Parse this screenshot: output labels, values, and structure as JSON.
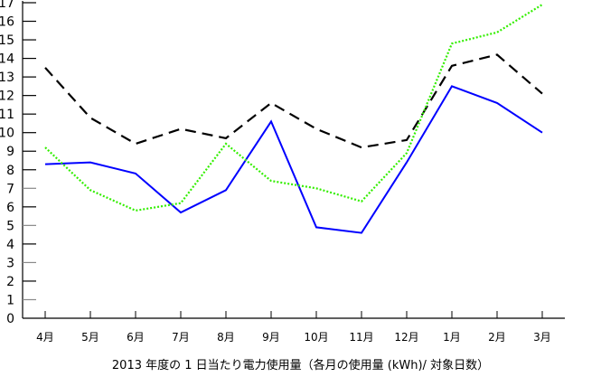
{
  "chart_data": {
    "type": "line",
    "title": "2013 年度の 1 日当たり電力使用量（各月の使用量 (kWh)/ 対象日数）",
    "xlabel": "",
    "ylabel": "",
    "categories": [
      "4月",
      "5月",
      "6月",
      "7月",
      "8月",
      "9月",
      "10月",
      "11月",
      "12月",
      "1月",
      "2月",
      "3月"
    ],
    "ylim": [
      0,
      17
    ],
    "yticks": [
      0,
      1,
      2,
      3,
      4,
      5,
      6,
      7,
      8,
      9,
      10,
      11,
      12,
      13,
      14,
      15,
      16,
      17
    ],
    "grid": false,
    "legend": null,
    "series": [
      {
        "name": "black-dashed",
        "color": "#000000",
        "style": "dashed",
        "values": [
          13.5,
          10.8,
          9.4,
          10.2,
          9.7,
          11.6,
          10.2,
          9.2,
          9.6,
          13.6,
          14.2,
          12.1
        ]
      },
      {
        "name": "blue-solid",
        "color": "#0000ff",
        "style": "solid",
        "values": [
          8.3,
          8.4,
          7.8,
          5.7,
          6.9,
          10.6,
          4.9,
          4.6,
          8.4,
          12.5,
          11.6,
          10.0
        ]
      },
      {
        "name": "green-dotted",
        "color": "#33ee00",
        "style": "dotted",
        "values": [
          9.2,
          6.9,
          5.8,
          6.2,
          9.4,
          7.4,
          7.0,
          6.3,
          8.9,
          14.8,
          15.4,
          16.9
        ]
      }
    ]
  }
}
